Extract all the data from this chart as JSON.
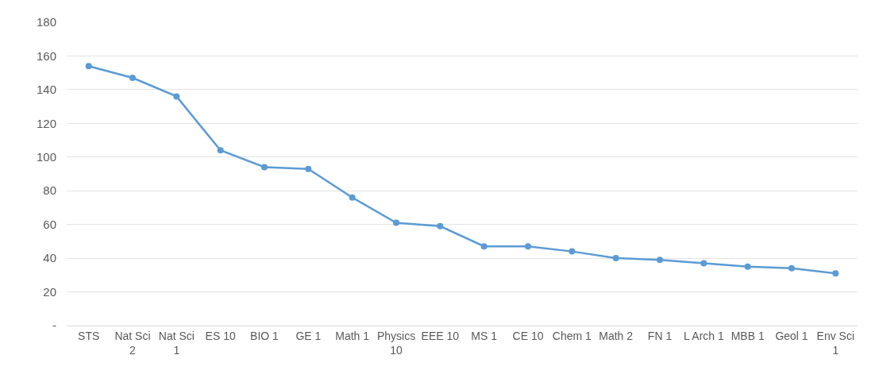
{
  "chart_data": {
    "type": "line",
    "categories": [
      "STS",
      "Nat Sci 2",
      "Nat Sci 1",
      "ES 10",
      "BIO 1",
      "GE 1",
      "Math 1",
      "Physics 10",
      "EEE 10",
      "MS 1",
      "CE 10",
      "Chem 1",
      "Math 2",
      "FN 1",
      "L Arch 1",
      "MBB 1",
      "Geol 1",
      "Env Sci 1"
    ],
    "series": [
      {
        "color": "#5b9bd5",
        "values": [
          154,
          147,
          136,
          104,
          94,
          93,
          76,
          61,
          59,
          47,
          47,
          44,
          40,
          39,
          37,
          35,
          34,
          31
        ]
      }
    ],
    "ylim": [
      0,
      180
    ],
    "yticks": [
      {
        "value": 0,
        "label": "-"
      },
      20,
      40,
      60,
      80,
      100,
      120,
      140,
      160,
      180
    ],
    "grid": "y",
    "marker": "circle",
    "line_style": "solid"
  }
}
